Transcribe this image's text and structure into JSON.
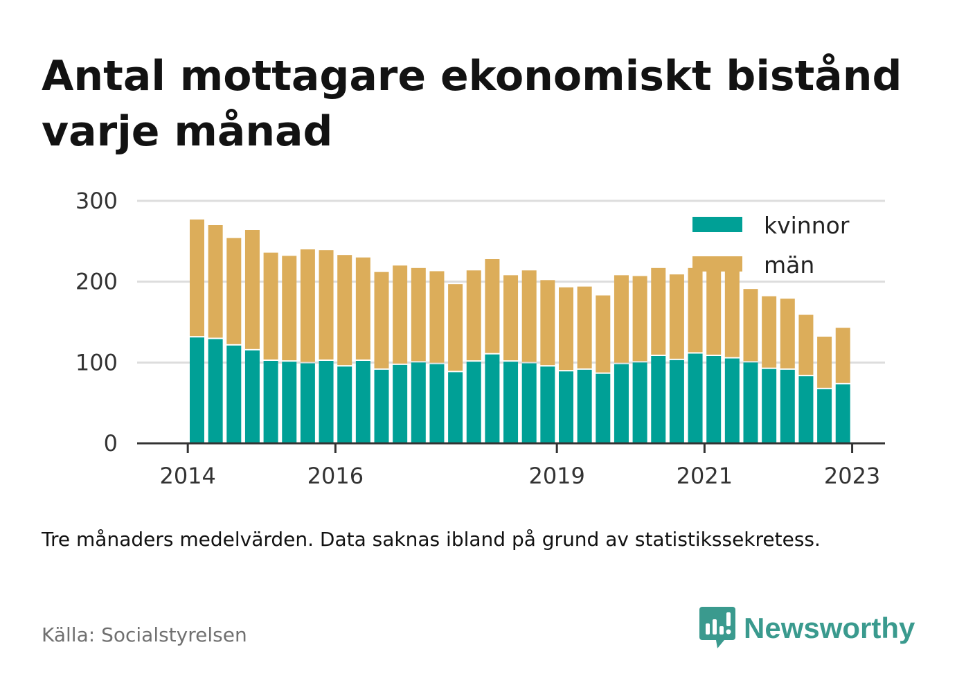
{
  "title": "Antal mottagare ekonomiskt bistånd varje månad",
  "note": "Tre månaders medelvärden. Data saknas ibland på grund av statistikssekretess.",
  "source": "Källa: Socialstyrelsen",
  "brand": {
    "name": "Newsworthy",
    "icon": "newsworthy-logo-icon"
  },
  "colors": {
    "kvinnor": "#00a096",
    "man": "#dcad5a",
    "grid": "#dddddd",
    "axis": "#333333",
    "brand": "#3a9a8e"
  },
  "chart_data": {
    "type": "bar",
    "stacked": true,
    "ylim": [
      0,
      300
    ],
    "yticks": [
      0,
      100,
      200,
      300
    ],
    "xticks": [
      {
        "label": "2014",
        "index": -0.5
      },
      {
        "label": "2016",
        "index": 7.5
      },
      {
        "label": "2019",
        "index": 19.5
      },
      {
        "label": "2021",
        "index": 27.5
      },
      {
        "label": "2023",
        "index": 35.5
      }
    ],
    "legend": {
      "position": "top-right"
    },
    "series": [
      {
        "name": "kvinnor",
        "values": [
          131,
          129,
          121,
          115,
          102,
          101,
          99,
          102,
          95,
          102,
          91,
          97,
          100,
          98,
          88,
          101,
          110,
          101,
          99,
          95,
          89,
          91,
          86,
          98,
          100,
          108,
          103,
          111,
          108,
          105,
          100,
          92,
          91,
          83,
          67,
          73
        ]
      },
      {
        "name": "män",
        "values": [
          146,
          141,
          133,
          149,
          134,
          131,
          141,
          137,
          138,
          128,
          121,
          123,
          117,
          115,
          109,
          113,
          118,
          107,
          115,
          107,
          104,
          103,
          97,
          110,
          107,
          109,
          106,
          106,
          111,
          108,
          91,
          90,
          88,
          76,
          65,
          70
        ]
      }
    ]
  }
}
